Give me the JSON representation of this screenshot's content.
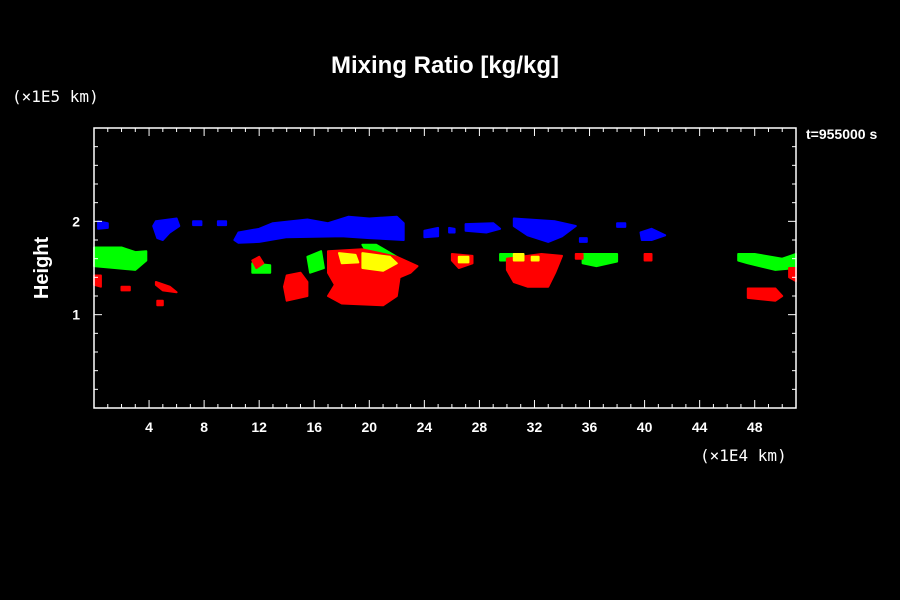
{
  "chart_data": {
    "type": "heatmap",
    "title": "Mixing Ratio [kg/kg]",
    "xlabel": "",
    "ylabel": "Height",
    "x_unit": "(×1E4 km)",
    "y_unit": "(×1E5 km)",
    "time_label": "t=955000 s",
    "xlim": [
      0,
      51
    ],
    "ylim": [
      0,
      3
    ],
    "xticks": [
      4,
      8,
      12,
      16,
      20,
      24,
      28,
      32,
      36,
      40,
      44,
      48
    ],
    "yticks": [
      1,
      2
    ],
    "colors": {
      "blue": "#0000ff",
      "green": "#00ff00",
      "yellow": "#ffff00",
      "red": "#ff0000"
    },
    "regions": [
      {
        "color": "blue",
        "points": [
          [
            0.3,
            2.0
          ],
          [
            1.0,
            1.98
          ],
          [
            1.0,
            1.93
          ],
          [
            0.3,
            1.92
          ]
        ]
      },
      {
        "color": "blue",
        "points": [
          [
            4.5,
            2.0
          ],
          [
            6.0,
            2.03
          ],
          [
            6.2,
            1.95
          ],
          [
            5.5,
            1.88
          ],
          [
            5.0,
            1.8
          ],
          [
            4.6,
            1.82
          ],
          [
            4.3,
            1.95
          ]
        ]
      },
      {
        "color": "blue",
        "points": [
          [
            7.2,
            2.0
          ],
          [
            7.8,
            2.0
          ],
          [
            7.8,
            1.96
          ],
          [
            7.2,
            1.96
          ]
        ]
      },
      {
        "color": "blue",
        "points": [
          [
            9.0,
            2.0
          ],
          [
            9.6,
            2.0
          ],
          [
            9.6,
            1.96
          ],
          [
            9.0,
            1.96
          ]
        ]
      },
      {
        "color": "blue",
        "points": [
          [
            10.2,
            1.8
          ],
          [
            10.5,
            1.88
          ],
          [
            12.0,
            1.92
          ],
          [
            13.0,
            1.98
          ],
          [
            15.5,
            2.02
          ],
          [
            17.0,
            1.98
          ],
          [
            18.5,
            2.05
          ],
          [
            20.0,
            2.03
          ],
          [
            22.0,
            2.05
          ],
          [
            22.5,
            1.98
          ],
          [
            22.5,
            1.8
          ],
          [
            20.0,
            1.82
          ],
          [
            18.0,
            1.84
          ],
          [
            14.0,
            1.83
          ],
          [
            12.0,
            1.78
          ],
          [
            10.5,
            1.77
          ]
        ]
      },
      {
        "color": "blue",
        "points": [
          [
            24.0,
            1.9
          ],
          [
            25.0,
            1.93
          ],
          [
            25.0,
            1.84
          ],
          [
            24.0,
            1.83
          ]
        ]
      },
      {
        "color": "blue",
        "points": [
          [
            25.8,
            1.93
          ],
          [
            26.2,
            1.92
          ],
          [
            26.2,
            1.88
          ],
          [
            25.8,
            1.88
          ]
        ]
      },
      {
        "color": "blue",
        "points": [
          [
            27.0,
            1.97
          ],
          [
            29.0,
            1.98
          ],
          [
            29.5,
            1.92
          ],
          [
            28.5,
            1.88
          ],
          [
            27.0,
            1.9
          ]
        ]
      },
      {
        "color": "blue",
        "points": [
          [
            30.5,
            2.03
          ],
          [
            33.5,
            2.0
          ],
          [
            35.0,
            1.95
          ],
          [
            34.0,
            1.84
          ],
          [
            33.0,
            1.78
          ],
          [
            31.5,
            1.85
          ],
          [
            30.5,
            1.95
          ]
        ]
      },
      {
        "color": "blue",
        "points": [
          [
            35.3,
            1.82
          ],
          [
            35.8,
            1.82
          ],
          [
            35.8,
            1.78
          ],
          [
            35.3,
            1.78
          ]
        ]
      },
      {
        "color": "blue",
        "points": [
          [
            38.0,
            1.98
          ],
          [
            38.6,
            1.98
          ],
          [
            38.6,
            1.94
          ],
          [
            38.0,
            1.94
          ]
        ]
      },
      {
        "color": "blue",
        "points": [
          [
            39.7,
            1.88
          ],
          [
            40.5,
            1.92
          ],
          [
            41.5,
            1.85
          ],
          [
            40.5,
            1.8
          ],
          [
            39.8,
            1.8
          ]
        ]
      },
      {
        "color": "green",
        "points": [
          [
            0.0,
            1.72
          ],
          [
            2.0,
            1.72
          ],
          [
            3.0,
            1.67
          ],
          [
            3.8,
            1.68
          ],
          [
            3.8,
            1.58
          ],
          [
            3.0,
            1.48
          ],
          [
            1.5,
            1.5
          ],
          [
            0.0,
            1.52
          ]
        ]
      },
      {
        "color": "green",
        "points": [
          [
            11.5,
            1.55
          ],
          [
            12.8,
            1.53
          ],
          [
            12.8,
            1.45
          ],
          [
            11.5,
            1.45
          ]
        ]
      },
      {
        "color": "green",
        "points": [
          [
            15.5,
            1.62
          ],
          [
            16.5,
            1.68
          ],
          [
            16.7,
            1.5
          ],
          [
            15.7,
            1.45
          ]
        ]
      },
      {
        "color": "green",
        "points": [
          [
            19.5,
            1.75
          ],
          [
            20.5,
            1.75
          ],
          [
            22.0,
            1.62
          ],
          [
            23.0,
            1.52
          ],
          [
            22.0,
            1.47
          ],
          [
            21.0,
            1.5
          ],
          [
            20.0,
            1.62
          ]
        ]
      },
      {
        "color": "green",
        "points": [
          [
            29.5,
            1.65
          ],
          [
            30.5,
            1.65
          ],
          [
            30.5,
            1.58
          ],
          [
            29.5,
            1.58
          ]
        ]
      },
      {
        "color": "green",
        "points": [
          [
            35.5,
            1.65
          ],
          [
            38.0,
            1.65
          ],
          [
            38.0,
            1.57
          ],
          [
            36.5,
            1.52
          ],
          [
            35.5,
            1.55
          ]
        ]
      },
      {
        "color": "green",
        "points": [
          [
            46.8,
            1.65
          ],
          [
            48.0,
            1.65
          ],
          [
            50.0,
            1.6
          ],
          [
            51.0,
            1.65
          ],
          [
            51.0,
            1.5
          ],
          [
            49.5,
            1.48
          ],
          [
            47.5,
            1.55
          ],
          [
            46.8,
            1.58
          ]
        ]
      },
      {
        "color": "red",
        "points": [
          [
            0.0,
            1.42
          ],
          [
            0.5,
            1.42
          ],
          [
            0.5,
            1.3
          ],
          [
            0.0,
            1.32
          ]
        ]
      },
      {
        "color": "red",
        "points": [
          [
            2.0,
            1.3
          ],
          [
            2.6,
            1.3
          ],
          [
            2.6,
            1.26
          ],
          [
            2.0,
            1.26
          ]
        ]
      },
      {
        "color": "red",
        "points": [
          [
            4.5,
            1.35
          ],
          [
            5.5,
            1.3
          ],
          [
            6.0,
            1.24
          ],
          [
            5.0,
            1.26
          ],
          [
            4.5,
            1.32
          ]
        ]
      },
      {
        "color": "red",
        "points": [
          [
            4.6,
            1.15
          ],
          [
            5.0,
            1.15
          ],
          [
            5.0,
            1.1
          ],
          [
            4.6,
            1.1
          ]
        ]
      },
      {
        "color": "red",
        "points": [
          [
            11.5,
            1.58
          ],
          [
            12.0,
            1.62
          ],
          [
            12.3,
            1.55
          ],
          [
            11.8,
            1.5
          ]
        ]
      },
      {
        "color": "red",
        "points": [
          [
            14.0,
            1.42
          ],
          [
            15.0,
            1.45
          ],
          [
            15.5,
            1.35
          ],
          [
            15.5,
            1.2
          ],
          [
            14.0,
            1.15
          ],
          [
            13.8,
            1.3
          ]
        ]
      },
      {
        "color": "red",
        "points": [
          [
            17.0,
            1.68
          ],
          [
            19.5,
            1.7
          ],
          [
            22.0,
            1.62
          ],
          [
            23.5,
            1.52
          ],
          [
            23.0,
            1.45
          ],
          [
            22.2,
            1.4
          ],
          [
            22.0,
            1.2
          ],
          [
            21.0,
            1.1
          ],
          [
            18.0,
            1.12
          ],
          [
            17.0,
            1.2
          ],
          [
            17.5,
            1.32
          ],
          [
            17.0,
            1.45
          ]
        ]
      },
      {
        "color": "red",
        "points": [
          [
            26.0,
            1.65
          ],
          [
            27.5,
            1.63
          ],
          [
            27.5,
            1.55
          ],
          [
            26.5,
            1.5
          ],
          [
            26.0,
            1.58
          ]
        ]
      },
      {
        "color": "red",
        "points": [
          [
            30.0,
            1.6
          ],
          [
            32.5,
            1.65
          ],
          [
            34.0,
            1.63
          ],
          [
            33.5,
            1.45
          ],
          [
            33.0,
            1.3
          ],
          [
            31.5,
            1.3
          ],
          [
            30.5,
            1.35
          ],
          [
            30.0,
            1.48
          ]
        ]
      },
      {
        "color": "red",
        "points": [
          [
            35.0,
            1.65
          ],
          [
            35.5,
            1.65
          ],
          [
            35.5,
            1.6
          ],
          [
            35.0,
            1.6
          ]
        ]
      },
      {
        "color": "red",
        "points": [
          [
            40.0,
            1.65
          ],
          [
            40.5,
            1.65
          ],
          [
            40.5,
            1.58
          ],
          [
            40.0,
            1.58
          ]
        ]
      },
      {
        "color": "red",
        "points": [
          [
            47.5,
            1.28
          ],
          [
            49.5,
            1.28
          ],
          [
            50.0,
            1.2
          ],
          [
            49.5,
            1.15
          ],
          [
            47.5,
            1.18
          ]
        ]
      },
      {
        "color": "red",
        "points": [
          [
            50.5,
            1.5
          ],
          [
            51.0,
            1.5
          ],
          [
            51.0,
            1.36
          ],
          [
            50.5,
            1.4
          ]
        ]
      },
      {
        "color": "yellow",
        "points": [
          [
            17.8,
            1.66
          ],
          [
            19.0,
            1.64
          ],
          [
            19.2,
            1.56
          ],
          [
            18.0,
            1.55
          ]
        ]
      },
      {
        "color": "yellow",
        "points": [
          [
            19.5,
            1.66
          ],
          [
            21.5,
            1.62
          ],
          [
            22.0,
            1.55
          ],
          [
            21.0,
            1.47
          ],
          [
            19.5,
            1.5
          ]
        ]
      },
      {
        "color": "yellow",
        "points": [
          [
            26.5,
            1.62
          ],
          [
            27.2,
            1.62
          ],
          [
            27.2,
            1.56
          ],
          [
            26.5,
            1.56
          ]
        ]
      },
      {
        "color": "yellow",
        "points": [
          [
            30.5,
            1.65
          ],
          [
            31.2,
            1.65
          ],
          [
            31.2,
            1.58
          ],
          [
            30.5,
            1.58
          ]
        ]
      },
      {
        "color": "yellow",
        "points": [
          [
            31.8,
            1.62
          ],
          [
            32.3,
            1.62
          ],
          [
            32.3,
            1.58
          ],
          [
            31.8,
            1.58
          ]
        ]
      }
    ]
  }
}
